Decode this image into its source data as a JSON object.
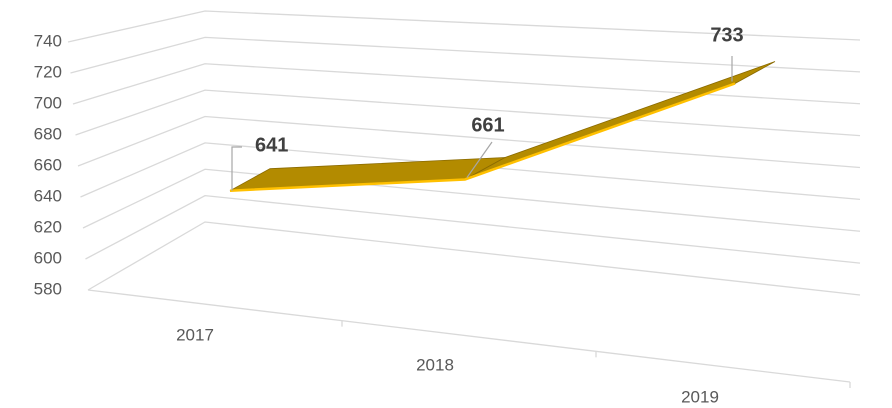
{
  "chart_data": {
    "type": "line3d",
    "categories": [
      "2017",
      "2018",
      "2019"
    ],
    "series": [
      {
        "values": [
          641,
          661,
          733
        ],
        "color": "#b38b00",
        "edge_color": "#ffc000"
      }
    ],
    "ylim": [
      580,
      740
    ],
    "yticks": [
      580,
      600,
      620,
      640,
      660,
      680,
      700,
      720,
      740
    ],
    "grid": true
  }
}
